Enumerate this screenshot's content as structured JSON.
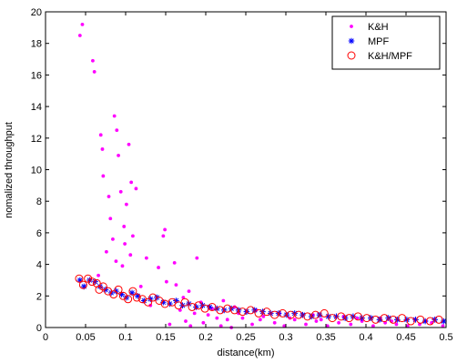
{
  "chart_data": {
    "type": "scatter",
    "xlabel": "distance(km)",
    "ylabel": "nomalized throughput",
    "xlim": [
      0,
      0.5
    ],
    "ylim": [
      0,
      20
    ],
    "x_ticks": [
      0,
      0.05,
      0.1,
      0.15,
      0.2,
      0.25,
      0.3,
      0.35,
      0.4,
      0.45,
      0.5
    ],
    "x_tick_labels": [
      "0",
      "0.05",
      "0.1",
      "0.15",
      "0.2",
      "0.25",
      "0.3",
      "0.35",
      "0.4",
      "0.45",
      "0.5"
    ],
    "y_ticks": [
      0,
      2,
      4,
      6,
      8,
      10,
      12,
      14,
      16,
      18,
      20
    ],
    "y_tick_labels": [
      "0",
      "2",
      "4",
      "6",
      "8",
      "10",
      "12",
      "14",
      "16",
      "18",
      "20"
    ],
    "grid": false,
    "legend_position": "top-right",
    "series": [
      {
        "name": "K&H",
        "marker": "dot",
        "color": "#ff00ff",
        "points": [
          [
            0.043,
            18.5
          ],
          [
            0.046,
            19.2
          ],
          [
            0.059,
            16.9
          ],
          [
            0.061,
            16.2
          ],
          [
            0.069,
            12.2
          ],
          [
            0.071,
            11.3
          ],
          [
            0.072,
            9.6
          ],
          [
            0.086,
            13.4
          ],
          [
            0.089,
            12.5
          ],
          [
            0.091,
            10.9
          ],
          [
            0.094,
            8.6
          ],
          [
            0.101,
            7.8
          ],
          [
            0.104,
            11.6
          ],
          [
            0.107,
            9.2
          ],
          [
            0.113,
            8.8
          ],
          [
            0.079,
            8.3
          ],
          [
            0.081,
            6.9
          ],
          [
            0.084,
            5.6
          ],
          [
            0.098,
            6.4
          ],
          [
            0.099,
            5.3
          ],
          [
            0.109,
            5.8
          ],
          [
            0.076,
            4.8
          ],
          [
            0.088,
            4.2
          ],
          [
            0.096,
            3.9
          ],
          [
            0.106,
            4.6
          ],
          [
            0.126,
            4.4
          ],
          [
            0.141,
            3.8
          ],
          [
            0.147,
            5.8
          ],
          [
            0.149,
            6.2
          ],
          [
            0.161,
            4.1
          ],
          [
            0.189,
            4.4
          ],
          [
            0.151,
            2.9
          ],
          [
            0.163,
            2.7
          ],
          [
            0.172,
            1.9
          ],
          [
            0.179,
            2.3
          ],
          [
            0.194,
            1.6
          ],
          [
            0.208,
            1.2
          ],
          [
            0.222,
            1.7
          ],
          [
            0.236,
            1.3
          ],
          [
            0.251,
            1.0
          ],
          [
            0.155,
            0.2
          ],
          [
            0.175,
            0.4
          ],
          [
            0.181,
            0.1
          ],
          [
            0.197,
            0.3
          ],
          [
            0.203,
            0.8
          ],
          [
            0.219,
            0.1
          ],
          [
            0.227,
            0.5
          ],
          [
            0.232,
            0.0
          ],
          [
            0.246,
            0.6
          ],
          [
            0.258,
            0.2
          ],
          [
            0.272,
            0.7
          ],
          [
            0.286,
            0.3
          ],
          [
            0.298,
            0.1
          ],
          [
            0.311,
            0.5
          ],
          [
            0.325,
            0.2
          ],
          [
            0.338,
            0.4
          ],
          [
            0.352,
            0.1
          ],
          [
            0.366,
            0.3
          ],
          [
            0.381,
            0.2
          ],
          [
            0.395,
            0.4
          ],
          [
            0.409,
            0.1
          ],
          [
            0.424,
            0.3
          ],
          [
            0.438,
            0.2
          ],
          [
            0.452,
            0.1
          ],
          [
            0.467,
            0.2
          ],
          [
            0.482,
            0.3
          ],
          [
            0.496,
            0.1
          ],
          [
            0.263,
            1.1
          ],
          [
            0.292,
            0.9
          ],
          [
            0.334,
            0.8
          ],
          [
            0.372,
            0.7
          ],
          [
            0.418,
            0.6
          ],
          [
            0.461,
            0.5
          ],
          [
            0.066,
            3.3
          ],
          [
            0.119,
            2.6
          ],
          [
            0.131,
            1.4
          ],
          [
            0.168,
            1.1
          ],
          [
            0.186,
            0.9
          ],
          [
            0.214,
            0.6
          ],
          [
            0.241,
            0.9
          ],
          [
            0.268,
            0.5
          ],
          [
            0.305,
            0.6
          ],
          [
            0.344,
            0.5
          ],
          [
            0.389,
            0.6
          ],
          [
            0.432,
            0.4
          ],
          [
            0.475,
            0.4
          ]
        ]
      },
      {
        "name": "MPF",
        "marker": "star",
        "color": "#0000ff",
        "points": [
          [
            0.043,
            3.0
          ],
          [
            0.048,
            2.6
          ],
          [
            0.055,
            3.0
          ],
          [
            0.062,
            2.9
          ],
          [
            0.068,
            2.6
          ],
          [
            0.075,
            2.4
          ],
          [
            0.082,
            2.2
          ],
          [
            0.088,
            2.3
          ],
          [
            0.095,
            2.1
          ],
          [
            0.101,
            1.9
          ],
          [
            0.108,
            2.2
          ],
          [
            0.115,
            2.0
          ],
          [
            0.123,
            1.7
          ],
          [
            0.131,
            1.8
          ],
          [
            0.139,
            1.9
          ],
          [
            0.147,
            1.6
          ],
          [
            0.155,
            1.5
          ],
          [
            0.163,
            1.7
          ],
          [
            0.171,
            1.4
          ],
          [
            0.179,
            1.5
          ],
          [
            0.188,
            1.3
          ],
          [
            0.196,
            1.4
          ],
          [
            0.205,
            1.3
          ],
          [
            0.214,
            1.2
          ],
          [
            0.223,
            1.1
          ],
          [
            0.232,
            1.2
          ],
          [
            0.241,
            1.1
          ],
          [
            0.251,
            1.0
          ],
          [
            0.261,
            1.1
          ],
          [
            0.271,
            1.0
          ],
          [
            0.281,
            0.9
          ],
          [
            0.291,
            0.9
          ],
          [
            0.301,
            0.8
          ],
          [
            0.311,
            0.9
          ],
          [
            0.321,
            0.8
          ],
          [
            0.332,
            0.7
          ],
          [
            0.342,
            0.8
          ],
          [
            0.353,
            0.7
          ],
          [
            0.363,
            0.7
          ],
          [
            0.374,
            0.6
          ],
          [
            0.384,
            0.7
          ],
          [
            0.395,
            0.6
          ],
          [
            0.406,
            0.6
          ],
          [
            0.417,
            0.5
          ],
          [
            0.428,
            0.6
          ],
          [
            0.439,
            0.5
          ],
          [
            0.451,
            0.5
          ],
          [
            0.462,
            0.5
          ],
          [
            0.474,
            0.4
          ],
          [
            0.486,
            0.5
          ],
          [
            0.497,
            0.4
          ]
        ]
      },
      {
        "name": "K&H/MPF",
        "marker": "circle",
        "color": "#ff0000",
        "points": [
          [
            0.042,
            3.1
          ],
          [
            0.047,
            2.7
          ],
          [
            0.053,
            3.1
          ],
          [
            0.058,
            2.9
          ],
          [
            0.064,
            2.8
          ],
          [
            0.067,
            2.4
          ],
          [
            0.072,
            2.6
          ],
          [
            0.078,
            2.3
          ],
          [
            0.085,
            2.1
          ],
          [
            0.091,
            2.4
          ],
          [
            0.097,
            2.0
          ],
          [
            0.103,
            1.8
          ],
          [
            0.109,
            2.3
          ],
          [
            0.114,
            1.9
          ],
          [
            0.121,
            1.8
          ],
          [
            0.128,
            1.6
          ],
          [
            0.134,
            1.9
          ],
          [
            0.142,
            1.7
          ],
          [
            0.149,
            1.5
          ],
          [
            0.158,
            1.6
          ],
          [
            0.166,
            1.4
          ],
          [
            0.174,
            1.6
          ],
          [
            0.183,
            1.3
          ],
          [
            0.191,
            1.4
          ],
          [
            0.199,
            1.2
          ],
          [
            0.208,
            1.3
          ],
          [
            0.218,
            1.1
          ],
          [
            0.227,
            1.2
          ],
          [
            0.236,
            1.1
          ],
          [
            0.246,
            1.0
          ],
          [
            0.256,
            1.1
          ],
          [
            0.266,
            0.9
          ],
          [
            0.276,
            1.0
          ],
          [
            0.286,
            0.8
          ],
          [
            0.296,
            0.9
          ],
          [
            0.306,
            0.8
          ],
          [
            0.316,
            0.8
          ],
          [
            0.327,
            0.7
          ],
          [
            0.337,
            0.8
          ],
          [
            0.348,
            0.9
          ],
          [
            0.358,
            0.6
          ],
          [
            0.369,
            0.7
          ],
          [
            0.379,
            0.6
          ],
          [
            0.39,
            0.7
          ],
          [
            0.401,
            0.6
          ],
          [
            0.412,
            0.5
          ],
          [
            0.423,
            0.6
          ],
          [
            0.434,
            0.5
          ],
          [
            0.445,
            0.6
          ],
          [
            0.456,
            0.4
          ],
          [
            0.468,
            0.5
          ],
          [
            0.48,
            0.4
          ],
          [
            0.491,
            0.5
          ]
        ]
      }
    ]
  }
}
